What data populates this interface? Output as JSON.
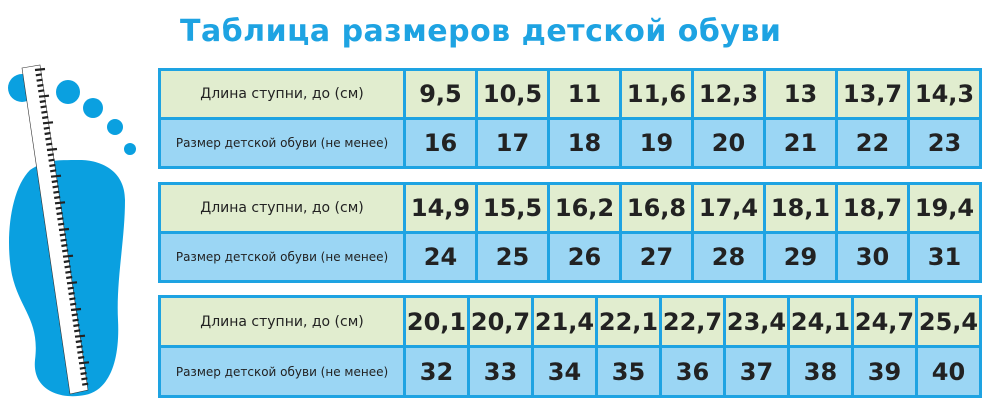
{
  "title": "Таблица размеров детской обуви",
  "row_labels": {
    "length": "Длина ступни, до (см)",
    "size": "Размер детской обуви (не менее)"
  },
  "tables": [
    {
      "length": [
        "9,5",
        "10,5",
        "11",
        "11,6",
        "12,3",
        "13",
        "13,7",
        "14,3"
      ],
      "size": [
        "16",
        "17",
        "18",
        "19",
        "20",
        "21",
        "22",
        "23"
      ]
    },
    {
      "length": [
        "14,9",
        "15,5",
        "16,2",
        "16,8",
        "17,4",
        "18,1",
        "18,7",
        "19,4"
      ],
      "size": [
        "24",
        "25",
        "26",
        "27",
        "28",
        "29",
        "30",
        "31"
      ]
    },
    {
      "length": [
        "20,1",
        "20,7",
        "21,4",
        "22,1",
        "22,7",
        "23,4",
        "24,1",
        "24,7",
        "25,4"
      ],
      "size": [
        "32",
        "33",
        "34",
        "35",
        "36",
        "37",
        "38",
        "39",
        "40"
      ]
    }
  ],
  "colors": {
    "accent": "#1ea3e2",
    "length_row": "#e1edcf",
    "size_row": "#9bd6f4"
  },
  "illustration": "foot-with-ruler-icon"
}
